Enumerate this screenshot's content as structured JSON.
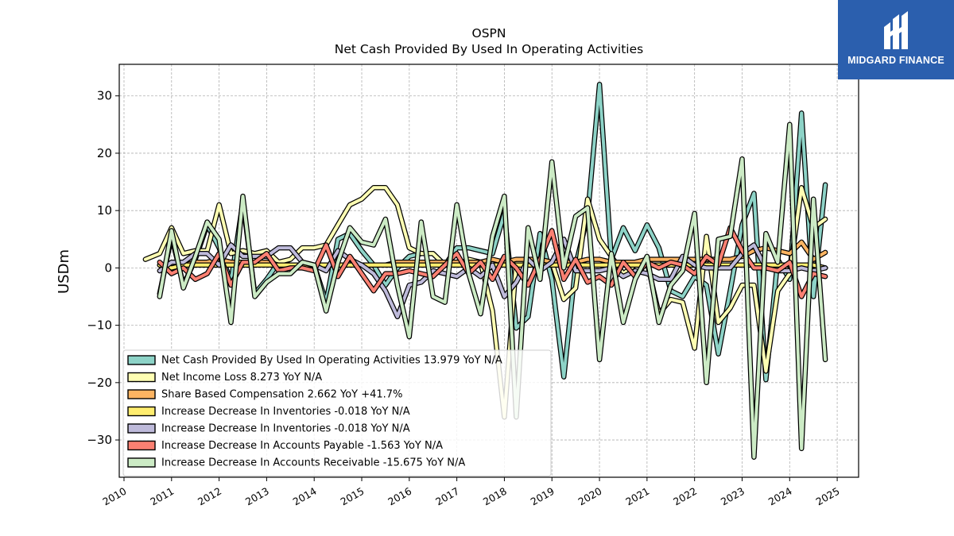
{
  "logo": {
    "brand": "MIDGARD FINANCE",
    "icon": "midgard-monogram-icon",
    "bg": "#2b5fae"
  },
  "chart_data": {
    "type": "line",
    "title": "OSPN",
    "subtitle": "Net Cash Provided By Used In Operating Activities",
    "ylabel": "USDm",
    "xlabel": "",
    "xlim": [
      2009.9,
      2025.45
    ],
    "ylim": [
      -36.5,
      35.5
    ],
    "yticks": [
      30,
      20,
      10,
      0,
      -10,
      -20,
      -30
    ],
    "ytick_labels": [
      "30",
      "20",
      "10",
      "0",
      "−10",
      "−20",
      "−30"
    ],
    "xticks": [
      2010,
      2011,
      2012,
      2013,
      2014,
      2015,
      2016,
      2017,
      2018,
      2019,
      2020,
      2021,
      2022,
      2023,
      2024,
      2025
    ],
    "xtick_labels": [
      "2010",
      "2011",
      "2012",
      "2013",
      "2014",
      "2015",
      "2016",
      "2017",
      "2018",
      "2019",
      "2020",
      "2021",
      "2022",
      "2023",
      "2024",
      "2025"
    ],
    "grid": true,
    "legend_position": "lower-left",
    "series": [
      {
        "name": "Net Cash Provided By Used In Operating Activities",
        "legend": "Net Cash Provided By Used In Operating Activities  13.979 YoY N/A",
        "color": "#8dd3c7",
        "x": [
          2010.75,
          2011.0,
          2011.25,
          2011.5,
          2011.75,
          2012.0,
          2012.25,
          2012.5,
          2012.75,
          2013.0,
          2013.25,
          2013.5,
          2013.75,
          2014.0,
          2014.25,
          2014.5,
          2014.75,
          2015.0,
          2015.25,
          2015.5,
          2015.75,
          2016.0,
          2016.25,
          2016.5,
          2016.75,
          2017.0,
          2017.25,
          2017.5,
          2017.75,
          2018.0,
          2018.25,
          2018.5,
          2018.75,
          2019.0,
          2019.25,
          2019.5,
          2019.75,
          2020.0,
          2020.25,
          2020.5,
          2020.75,
          2021.0,
          2021.25,
          2021.5,
          2021.75,
          2022.0,
          2022.25,
          2022.5,
          2022.75,
          2023.0,
          2023.25,
          2023.5,
          2023.75,
          2024.0,
          2024.25,
          2024.5,
          2024.75
        ],
        "y": [
          -4.5,
          5.5,
          -3.0,
          1.5,
          7.5,
          3.5,
          -2.5,
          11.5,
          -4.5,
          -2.0,
          1.0,
          0.5,
          0.0,
          0.5,
          -6.0,
          5.0,
          6.0,
          3.0,
          0.5,
          -3.0,
          0.0,
          2.0,
          2.5,
          2.5,
          0.5,
          3.5,
          3.5,
          3.0,
          2.5,
          9.5,
          -10.5,
          -8.5,
          6.0,
          -2.0,
          -19.0,
          0.5,
          9.0,
          32.0,
          1.5,
          7.0,
          3.0,
          7.5,
          3.5,
          -4.0,
          -5.0,
          -1.5,
          -3.0,
          -15.0,
          -4.0,
          7.5,
          13.0,
          -19.5,
          1.5,
          -2.0,
          27.0,
          -5.0,
          14.5
        ]
      },
      {
        "name": "Net Income Loss",
        "legend": "Net Income Loss  8.273 YoY N/A",
        "color": "#ffffb3",
        "x": [
          2010.45,
          2010.75,
          2011.0,
          2011.25,
          2011.5,
          2011.75,
          2012.0,
          2012.25,
          2012.5,
          2012.75,
          2013.0,
          2013.25,
          2013.5,
          2013.75,
          2014.0,
          2014.25,
          2014.5,
          2014.75,
          2015.0,
          2015.25,
          2015.5,
          2015.75,
          2016.0,
          2016.25,
          2016.5,
          2016.75,
          2017.0,
          2017.25,
          2017.5,
          2017.75,
          2018.0,
          2018.25,
          2018.5,
          2018.75,
          2019.0,
          2019.25,
          2019.5,
          2019.75,
          2020.0,
          2020.25,
          2020.5,
          2020.75,
          2021.0,
          2021.25,
          2021.5,
          2021.75,
          2022.0,
          2022.25,
          2022.5,
          2022.75,
          2023.0,
          2023.25,
          2023.5,
          2023.75,
          2024.0,
          2024.25,
          2024.5,
          2024.75
        ],
        "y": [
          1.5,
          2.5,
          7.0,
          2.5,
          3.0,
          3.0,
          11.0,
          2.5,
          3.0,
          2.5,
          3.0,
          1.0,
          1.5,
          3.5,
          3.5,
          4.0,
          7.5,
          11.0,
          12.0,
          14.0,
          14.0,
          11.0,
          3.5,
          2.5,
          2.5,
          0.5,
          0.5,
          1.5,
          1.0,
          -7.5,
          -26.0,
          1.0,
          1.5,
          1.0,
          1.0,
          -5.5,
          -3.5,
          12.0,
          5.0,
          2.0,
          -1.0,
          0.5,
          1.0,
          -8.0,
          -5.5,
          -6.0,
          -14.0,
          5.5,
          -9.5,
          -7.0,
          -3.0,
          -3.0,
          -18.0,
          -4.0,
          -1.0,
          14.0,
          7.0,
          8.5
        ]
      },
      {
        "name": "Share Based Compensation",
        "legend": "Share Based Compensation  2.662 YoY +41.7%",
        "color": "#fdb462",
        "x": [
          2010.75,
          2011.0,
          2011.25,
          2011.5,
          2011.75,
          2012.0,
          2012.25,
          2012.5,
          2012.75,
          2013.0,
          2013.25,
          2013.5,
          2013.75,
          2014.0,
          2014.25,
          2014.5,
          2014.75,
          2015.0,
          2015.25,
          2015.5,
          2015.75,
          2016.0,
          2016.25,
          2016.5,
          2016.75,
          2017.0,
          2017.25,
          2017.5,
          2017.75,
          2018.0,
          2018.25,
          2018.5,
          2018.75,
          2019.0,
          2019.25,
          2019.5,
          2019.75,
          2020.0,
          2020.25,
          2020.5,
          2020.75,
          2021.0,
          2021.25,
          2021.5,
          2021.75,
          2022.0,
          2022.25,
          2022.5,
          2022.75,
          2023.0,
          2023.25,
          2023.5,
          2023.75,
          2024.0,
          2024.25,
          2024.5,
          2024.75
        ],
        "y": [
          0.5,
          -0.5,
          0.5,
          1.0,
          1.0,
          1.5,
          1.0,
          1.0,
          1.0,
          1.0,
          0.5,
          0.5,
          0.5,
          0.5,
          0.5,
          0.5,
          0.5,
          0.5,
          0.5,
          0.5,
          1.0,
          1.0,
          1.0,
          1.0,
          1.0,
          1.0,
          1.0,
          1.0,
          1.5,
          1.0,
          1.5,
          1.5,
          1.5,
          1.0,
          1.0,
          1.0,
          1.5,
          1.5,
          1.0,
          1.0,
          1.0,
          1.5,
          1.5,
          1.5,
          1.5,
          1.5,
          1.5,
          1.5,
          1.5,
          2.0,
          3.0,
          3.5,
          3.0,
          2.5,
          4.5,
          1.5,
          2.7
        ]
      },
      {
        "name": "Increase Decrease In Inventories",
        "legend": "Increase Decrease In Inventories  -0.018 YoY N/A",
        "color": "#ffed6f",
        "x": [
          2010.75,
          2011.0,
          2011.25,
          2011.5,
          2011.75,
          2012.0,
          2012.25,
          2012.5,
          2012.75,
          2013.0,
          2013.25,
          2013.5,
          2013.75,
          2014.0,
          2014.25,
          2014.5,
          2014.75,
          2015.0,
          2015.25,
          2015.5,
          2015.75,
          2016.0,
          2016.25,
          2016.5,
          2016.75,
          2017.0,
          2017.25,
          2017.5,
          2017.75,
          2018.0,
          2018.25,
          2018.5,
          2018.75,
          2019.0,
          2019.25,
          2019.5,
          2019.75,
          2020.0,
          2020.25,
          2020.5,
          2020.75,
          2021.0,
          2021.25,
          2021.5,
          2021.75,
          2022.0,
          2022.25,
          2022.5,
          2022.75,
          2023.0,
          2023.25,
          2023.5,
          2023.75,
          2024.0,
          2024.25,
          2024.5,
          2024.75
        ],
        "y": [
          0.5,
          0.0,
          0.5,
          0.5,
          0.5,
          0.5,
          0.5,
          0.5,
          0.5,
          0.5,
          0.5,
          0.5,
          0.5,
          0.5,
          0.5,
          0.5,
          0.5,
          0.5,
          0.5,
          0.5,
          0.5,
          0.5,
          0.5,
          0.5,
          0.5,
          0.5,
          0.5,
          0.5,
          0.5,
          0.5,
          0.5,
          0.5,
          0.5,
          0.5,
          0.5,
          0.5,
          0.5,
          0.5,
          0.5,
          0.5,
          0.5,
          0.5,
          0.5,
          0.5,
          0.5,
          0.5,
          0.5,
          0.5,
          0.5,
          0.5,
          0.5,
          0.5,
          0.5,
          0.5,
          0.5,
          0.5,
          0.0
        ]
      },
      {
        "name": "Increase Decrease In Inventories",
        "legend": "Increase Decrease In Inventories  -0.018 YoY N/A",
        "color": "#bebada",
        "x": [
          2010.75,
          2011.0,
          2011.25,
          2011.5,
          2011.75,
          2012.0,
          2012.25,
          2012.5,
          2012.75,
          2013.0,
          2013.25,
          2013.5,
          2013.75,
          2014.0,
          2014.25,
          2014.5,
          2014.75,
          2015.0,
          2015.25,
          2015.5,
          2015.75,
          2016.0,
          2016.25,
          2016.5,
          2016.75,
          2017.0,
          2017.25,
          2017.5,
          2017.75,
          2018.0,
          2018.25,
          2018.5,
          2018.75,
          2019.0,
          2019.25,
          2019.5,
          2019.75,
          2020.0,
          2020.25,
          2020.5,
          2020.75,
          2021.0,
          2021.25,
          2021.5,
          2021.75,
          2022.0,
          2022.25,
          2022.5,
          2022.75,
          2023.0,
          2023.25,
          2023.5,
          2023.75,
          2024.0,
          2024.25,
          2024.5,
          2024.75
        ],
        "y": [
          -0.5,
          1.0,
          1.0,
          2.5,
          2.5,
          0.5,
          4.0,
          2.0,
          2.0,
          2.0,
          3.5,
          3.5,
          1.0,
          0.5,
          -0.5,
          3.0,
          1.5,
          0.5,
          -1.0,
          -4.0,
          -8.5,
          -3.0,
          -2.5,
          -0.5,
          -1.0,
          -1.5,
          0.0,
          -1.5,
          0.5,
          -5.0,
          -2.5,
          1.5,
          -0.5,
          1.0,
          5.0,
          -0.5,
          -0.5,
          -0.5,
          0.0,
          -1.5,
          -0.5,
          -1.0,
          -2.0,
          -2.0,
          2.0,
          0.5,
          0.0,
          0.0,
          0.0,
          2.5,
          4.0,
          0.0,
          -0.5,
          -0.5,
          0.0,
          -0.5,
          0.0
        ]
      },
      {
        "name": "Increase Decrease In Accounts Payable",
        "legend": "Increase Decrease In Accounts Payable  -1.563 YoY N/A",
        "color": "#fb8072",
        "x": [
          2010.75,
          2011.0,
          2011.25,
          2011.5,
          2011.75,
          2012.0,
          2012.25,
          2012.5,
          2012.75,
          2013.0,
          2013.25,
          2013.5,
          2013.75,
          2014.0,
          2014.25,
          2014.5,
          2014.75,
          2015.0,
          2015.25,
          2015.5,
          2015.75,
          2016.0,
          2016.25,
          2016.5,
          2016.75,
          2017.0,
          2017.25,
          2017.5,
          2017.75,
          2018.0,
          2018.25,
          2018.5,
          2018.75,
          2019.0,
          2019.25,
          2019.5,
          2019.75,
          2020.0,
          2020.25,
          2020.5,
          2020.75,
          2021.0,
          2021.25,
          2021.5,
          2021.75,
          2022.0,
          2022.25,
          2022.5,
          2022.75,
          2023.0,
          2023.25,
          2023.5,
          2023.75,
          2024.0,
          2024.25,
          2024.5,
          2024.75
        ],
        "y": [
          1.0,
          -1.0,
          0.0,
          -2.0,
          -1.0,
          2.5,
          -3.0,
          1.0,
          1.0,
          2.5,
          -0.5,
          0.0,
          0.0,
          -0.5,
          4.0,
          -1.5,
          2.0,
          -1.0,
          -4.0,
          -1.0,
          -1.0,
          -0.5,
          -1.0,
          -1.5,
          0.5,
          2.5,
          -1.0,
          1.0,
          -2.0,
          2.0,
          0.0,
          -3.0,
          1.5,
          6.5,
          -2.0,
          1.5,
          -2.5,
          -1.5,
          -3.0,
          1.0,
          -1.5,
          1.0,
          0.0,
          1.0,
          0.5,
          -1.0,
          2.0,
          0.5,
          7.0,
          3.0,
          0.0,
          0.0,
          -0.5,
          1.0,
          -5.0,
          -1.0,
          -1.5
        ]
      },
      {
        "name": "Increase Decrease In Accounts Receivable",
        "legend": "Increase Decrease In Accounts Receivable  -15.675 YoY N/A",
        "color": "#ccebc5",
        "x": [
          2010.75,
          2011.0,
          2011.25,
          2011.5,
          2011.75,
          2012.0,
          2012.25,
          2012.5,
          2012.75,
          2013.0,
          2013.25,
          2013.5,
          2013.75,
          2014.0,
          2014.25,
          2014.5,
          2014.75,
          2015.0,
          2015.25,
          2015.5,
          2015.75,
          2016.0,
          2016.25,
          2016.5,
          2016.75,
          2017.0,
          2017.25,
          2017.5,
          2017.75,
          2018.0,
          2018.25,
          2018.5,
          2018.75,
          2019.0,
          2019.25,
          2019.5,
          2019.75,
          2020.0,
          2020.25,
          2020.5,
          2020.75,
          2021.0,
          2021.25,
          2021.5,
          2021.75,
          2022.0,
          2022.25,
          2022.5,
          2022.75,
          2023.0,
          2023.25,
          2023.5,
          2023.75,
          2024.0,
          2024.25,
          2024.5,
          2024.75
        ],
        "y": [
          -5.0,
          6.5,
          -3.5,
          2.0,
          8.0,
          5.0,
          -9.5,
          12.5,
          -5.0,
          -2.5,
          -1.0,
          -1.0,
          1.0,
          0.5,
          -7.5,
          1.0,
          7.0,
          4.5,
          4.0,
          8.5,
          -3.0,
          -12.0,
          8.0,
          -5.0,
          -6.0,
          11.0,
          -1.0,
          -8.0,
          5.5,
          12.5,
          -26.0,
          7.0,
          -2.0,
          18.5,
          0.0,
          9.0,
          10.5,
          -16.0,
          2.5,
          -9.5,
          -2.0,
          2.0,
          -9.5,
          -3.0,
          -0.5,
          9.5,
          -20.0,
          5.0,
          5.5,
          19.0,
          -33.0,
          6.0,
          1.0,
          25.0,
          -31.5,
          12.0,
          -16.0
        ]
      }
    ]
  }
}
